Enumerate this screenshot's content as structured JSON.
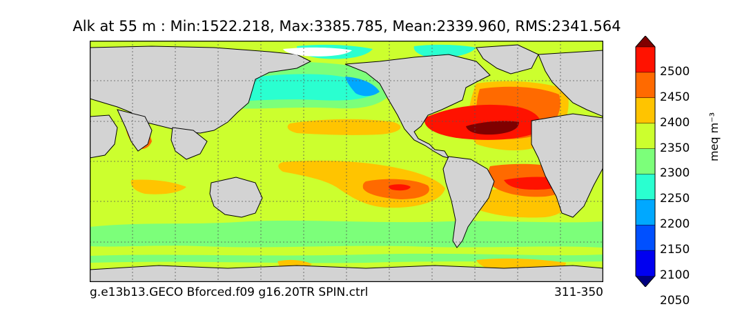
{
  "title": "Alk at 55 m : Min:1522.218, Max:3385.785, Mean:2339.960, RMS:2341.564",
  "footer": {
    "run": "g.e13b13.GECO Bforced.f09 g16.20TR SPIN.ctrl",
    "years": "311-350"
  },
  "colorbar": {
    "units": "meq m⁻³",
    "ticks": [
      "2500",
      "2450",
      "2400",
      "2350",
      "2300",
      "2250",
      "2200",
      "2150",
      "2100",
      "2050"
    ],
    "colors": [
      "#7f0000",
      "#ff1200",
      "#ff6a00",
      "#ffc400",
      "#ccff2e",
      "#7cff7a",
      "#2affd0",
      "#00a8ff",
      "#0050ff",
      "#0000f0",
      "#00007f"
    ]
  },
  "map": {
    "land_color": "#d3d3d3",
    "level_colors": {
      "l2050": "#0000f0",
      "l2150": "#00a8ff",
      "l2200": "#2affd0",
      "l2250": "#7cff7a",
      "l2300": "#ccff2e",
      "l2350": "#ffc400",
      "l2400": "#ff6a00",
      "l2450": "#ff1200",
      "l2500": "#7f0000"
    }
  }
}
